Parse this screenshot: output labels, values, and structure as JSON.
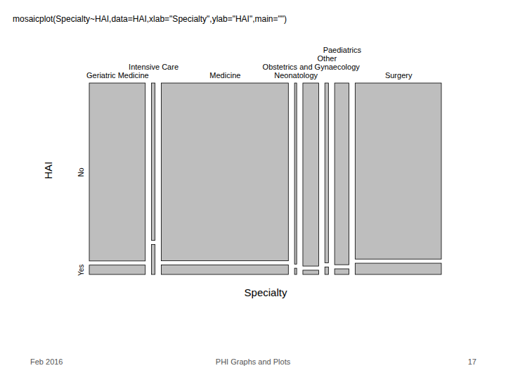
{
  "chart_data": {
    "type": "mosaic",
    "x_label": "Specialty",
    "y_label": "HAI",
    "categories": [
      "Geriatric Medicine",
      "Intensive Care",
      "Medicine",
      "Neonatology",
      "Obstetrics and Gynaecology",
      "Other",
      "Paediatrics",
      "Surgery"
    ],
    "series": [
      {
        "name": "No",
        "values": [
          741,
          42,
          1680,
          29,
          215,
          48,
          194,
          1128
        ]
      },
      {
        "name": "Yes",
        "values": [
          39,
          8,
          90,
          1,
          5,
          2,
          6,
          72
        ]
      }
    ],
    "color": "#bebebe",
    "tick_labels": "x"
  },
  "slide": {
    "code": "mosaicplot(Specialty~HAI,data=HAI,xlab=\"Specialty\",ylab=\"HAI\",main=\"\")",
    "footer_left": "Feb 2016",
    "footer_center": "PHI Graphs and Plots",
    "page": "17"
  }
}
